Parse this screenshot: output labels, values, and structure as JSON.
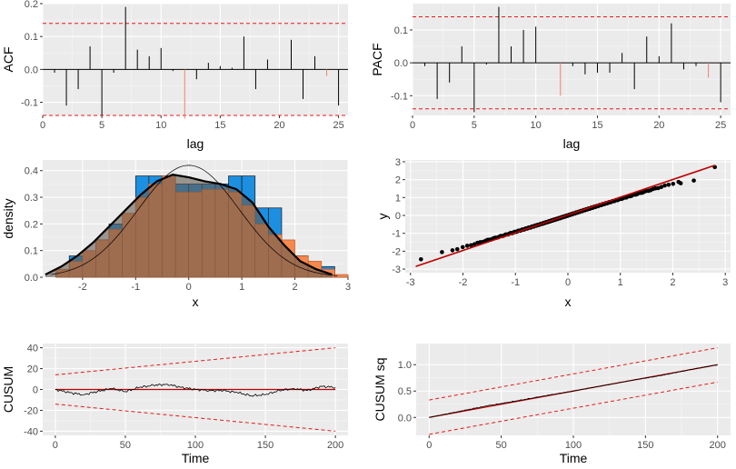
{
  "chart_data": [
    {
      "id": "acf",
      "type": "bar",
      "xlabel": "lag",
      "ylabel": "ACF",
      "xlim": [
        0,
        25.8
      ],
      "ylim": [
        -0.14,
        0.2
      ],
      "xticks": [
        0,
        5,
        10,
        15,
        20,
        25
      ],
      "yticks": [
        -0.1,
        0.0,
        0.1,
        0.2
      ],
      "ytick_labels": [
        "-0.1",
        "0.0",
        "0.1",
        "0.2"
      ],
      "bounds": [
        0.14,
        -0.14
      ],
      "lags": [
        1,
        2,
        3,
        4,
        5,
        6,
        7,
        8,
        9,
        10,
        11,
        12,
        13,
        14,
        15,
        16,
        17,
        18,
        19,
        20,
        21,
        22,
        23,
        24,
        25
      ],
      "values": [
        -0.01,
        -0.11,
        -0.06,
        0.07,
        -0.14,
        -0.01,
        0.19,
        0.06,
        0.04,
        0.065,
        -0.005,
        -0.15,
        -0.03,
        0.02,
        0.01,
        0.005,
        0.1,
        -0.06,
        0.03,
        0.0,
        0.09,
        -0.09,
        0.04,
        -0.02,
        -0.11
      ],
      "highlight_lags": [
        12,
        24
      ],
      "highlight_color": "#f08070"
    },
    {
      "id": "pacf",
      "type": "bar",
      "xlabel": "lag",
      "ylabel": "PACF",
      "xlim": [
        0,
        25.8
      ],
      "ylim": [
        -0.16,
        0.18
      ],
      "xticks": [
        0,
        5,
        10,
        15,
        20,
        25
      ],
      "yticks": [
        -0.1,
        0.0,
        0.1
      ],
      "ytick_labels": [
        "-0.1",
        "0.0",
        "0.1"
      ],
      "bounds": [
        0.14,
        -0.14
      ],
      "lags": [
        1,
        2,
        3,
        4,
        5,
        6,
        7,
        8,
        9,
        10,
        11,
        12,
        13,
        14,
        15,
        16,
        17,
        18,
        19,
        20,
        21,
        22,
        23,
        24,
        25
      ],
      "values": [
        -0.01,
        -0.11,
        -0.06,
        0.05,
        -0.15,
        -0.005,
        0.17,
        0.05,
        0.1,
        0.11,
        0.0,
        -0.1,
        -0.01,
        -0.035,
        -0.03,
        -0.03,
        0.03,
        -0.08,
        0.08,
        0.02,
        0.12,
        -0.02,
        -0.01,
        -0.045,
        -0.12
      ],
      "highlight_lags": [
        12,
        24
      ],
      "highlight_color": "#f08070"
    },
    {
      "id": "hist",
      "type": "bar",
      "xlabel": "x",
      "ylabel": "density",
      "xlim": [
        -2.75,
        3.0
      ],
      "ylim": [
        0,
        0.44
      ],
      "xticks": [
        -2,
        -1,
        0,
        1,
        2,
        3
      ],
      "yticks": [
        0.0,
        0.1,
        0.2,
        0.3,
        0.4
      ],
      "ytick_labels": [
        "0.0",
        "0.1",
        "0.2",
        "0.3",
        "0.4"
      ],
      "bin_edges": [
        -2.5,
        -2.25,
        -2.0,
        -1.75,
        -1.5,
        -1.25,
        -1.0,
        -0.75,
        -0.5,
        -0.25,
        0.0,
        0.25,
        0.5,
        0.75,
        1.0,
        1.25,
        1.5,
        1.75,
        2.0,
        2.25,
        2.5,
        2.75,
        3.0
      ],
      "hist_blue": [
        0.02,
        0.08,
        0.08,
        0.14,
        0.2,
        0.2,
        0.38,
        0.38,
        0.38,
        0.35,
        0.35,
        0.35,
        0.35,
        0.38,
        0.38,
        0.26,
        0.26,
        0.08,
        0.08,
        0.04,
        0.04,
        0.005
      ],
      "hist_orange": [
        0.03,
        0.06,
        0.1,
        0.14,
        0.18,
        0.24,
        0.3,
        0.35,
        0.38,
        0.32,
        0.32,
        0.33,
        0.33,
        0.32,
        0.27,
        0.2,
        0.16,
        0.14,
        0.08,
        0.06,
        0.03,
        0.01
      ],
      "kde_x": [
        -2.7,
        -2.4,
        -2.1,
        -1.8,
        -1.5,
        -1.2,
        -0.9,
        -0.6,
        -0.3,
        0.0,
        0.3,
        0.6,
        0.9,
        1.2,
        1.5,
        1.8,
        2.1,
        2.4,
        2.7
      ],
      "kde_y": [
        0.01,
        0.04,
        0.08,
        0.13,
        0.19,
        0.25,
        0.31,
        0.36,
        0.385,
        0.375,
        0.36,
        0.35,
        0.33,
        0.28,
        0.19,
        0.12,
        0.06,
        0.03,
        0.01
      ],
      "normal_mean": 0.0,
      "normal_sd": 0.95,
      "color_blue": "#1d8fe0",
      "color_orange": "#f5884f"
    },
    {
      "id": "qq",
      "type": "scatter",
      "xlabel": "x",
      "ylabel": "y",
      "xlim": [
        -3.1,
        3.1
      ],
      "ylim": [
        -3.2,
        3.1
      ],
      "xticks": [
        -3,
        -2,
        -1,
        0,
        1,
        2,
        3
      ],
      "yticks": [
        -3,
        -2,
        -1,
        0,
        1,
        2,
        3
      ],
      "line": {
        "x": [
          -2.9,
          2.8
        ],
        "y": [
          -2.85,
          2.8
        ]
      },
      "n_points": 200,
      "tail_points": [
        [
          -2.8,
          -2.45
        ],
        [
          -2.4,
          -2.05
        ],
        [
          -2.2,
          -1.95
        ],
        [
          2.15,
          1.8
        ],
        [
          2.4,
          1.95
        ],
        [
          2.8,
          2.7
        ]
      ],
      "line_color": "#c00000"
    },
    {
      "id": "cusum",
      "type": "line",
      "xlabel": "Time",
      "ylabel": "CUSUM",
      "xlim": [
        -9,
        209
      ],
      "ylim": [
        -44,
        44
      ],
      "xticks": [
        0,
        50,
        100,
        150,
        200
      ],
      "yticks": [
        -40,
        -20,
        0,
        20,
        40
      ],
      "ytick_labels": [
        "-40",
        "-20",
        "0",
        "20",
        "40"
      ],
      "bounds_upper": [
        [
          0,
          14
        ],
        [
          200,
          40
        ]
      ],
      "bounds_lower": [
        [
          0,
          -14
        ],
        [
          200,
          -40
        ]
      ],
      "series_x": [
        0,
        10,
        20,
        30,
        40,
        50,
        60,
        70,
        80,
        90,
        100,
        110,
        120,
        130,
        140,
        150,
        160,
        170,
        180,
        190,
        200
      ],
      "series_y": [
        0,
        -3,
        -5,
        -2,
        1,
        -2,
        2,
        4,
        5,
        2,
        0,
        -1,
        -1,
        -3,
        -6,
        -5,
        -1,
        1,
        -1,
        3,
        2
      ]
    },
    {
      "id": "cusumsq",
      "type": "line",
      "xlabel": "Time",
      "ylabel": "CUSUM sq",
      "xlim": [
        -9,
        209
      ],
      "ylim": [
        -0.34,
        1.4
      ],
      "xticks": [
        0,
        50,
        100,
        150,
        200
      ],
      "yticks": [
        0.0,
        0.5,
        1.0
      ],
      "ytick_labels": [
        "0.0",
        "0.5",
        "1.0"
      ],
      "bounds_upper": [
        [
          0,
          0.33
        ],
        [
          200,
          1.32
        ]
      ],
      "bounds_lower": [
        [
          0,
          -0.32
        ],
        [
          200,
          0.67
        ]
      ],
      "series_x": [
        0,
        20,
        40,
        60,
        80,
        100,
        120,
        140,
        160,
        180,
        200
      ],
      "series_y": [
        0,
        0.11,
        0.22,
        0.31,
        0.41,
        0.5,
        0.6,
        0.7,
        0.79,
        0.9,
        1.0
      ]
    }
  ]
}
